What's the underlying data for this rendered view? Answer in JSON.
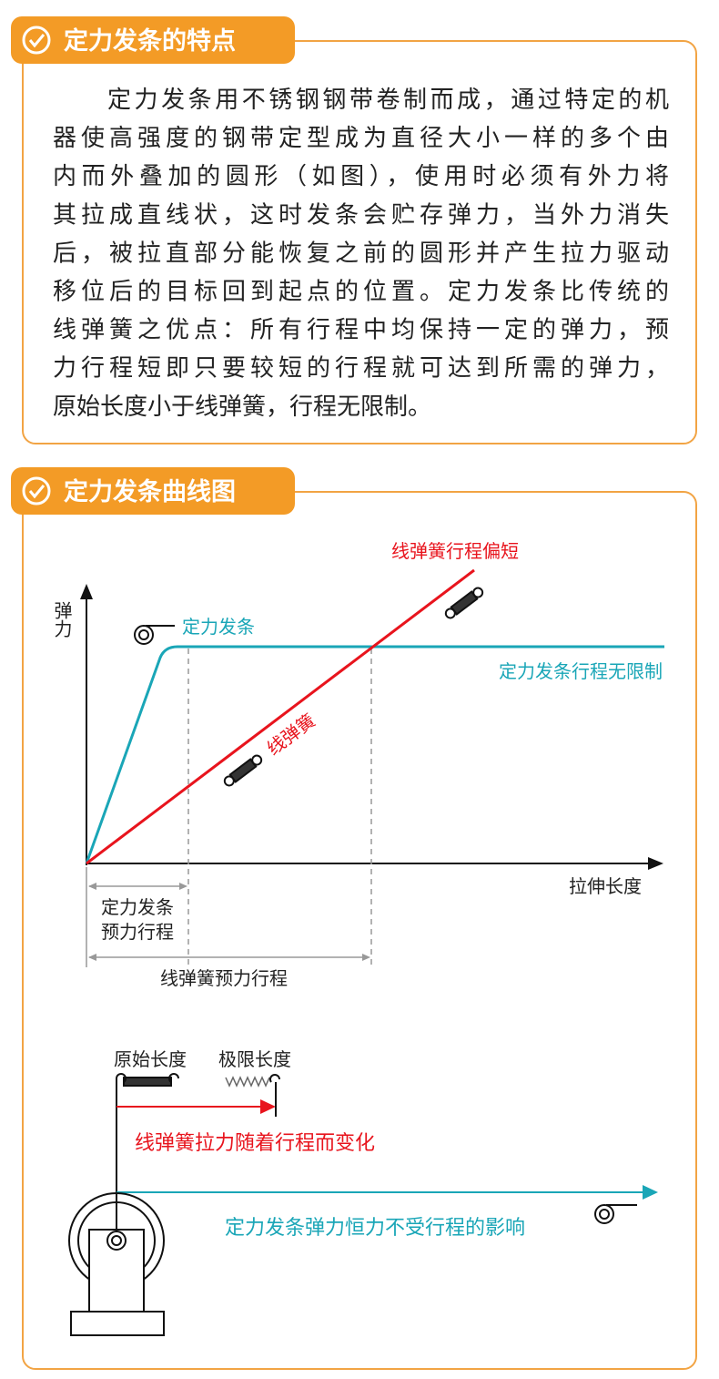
{
  "sections": [
    {
      "title": "定力发条的特点",
      "paragraph_lines": [
        "定力发条用不锈钢钢带卷制而成，通过特定的机",
        "器使高强度的钢带定型成为直径大小一样的多个由",
        "内而外叠加的圆形（如图），使用时必须有外力将",
        "其拉成直线状，这时发条会贮存弹力，当外力消失",
        "后，被拉直部分能恢复之前的圆形并产生拉力驱动",
        "移位后的目标回到起点的位置。定力发条比传统的",
        "线弹簧之优点：所有行程中均保持一定的弹力，预",
        "力行程短即只要较短的行程就可达到所需的弹力，",
        "原始长度小于线弹簧，行程无限制。"
      ]
    },
    {
      "title": "定力发条曲线图"
    }
  ],
  "diagram": {
    "y_axis_label": "弹力",
    "x_axis_label": "拉伸长度",
    "constant_spring_label": "定力发条",
    "constant_spring_note": "定力发条行程无限制",
    "line_spring_note": "线弹簧行程偏短",
    "line_spring_label": "线弹簧",
    "constant_preload": [
      "定力发条",
      "预力行程"
    ],
    "line_preload": "线弹簧预力行程",
    "original_length": "原始长度",
    "limit_length": "极限长度",
    "line_spring_change": "线弹簧拉力随着行程而变化",
    "constant_force": "定力发条弹力恒力不受行程的影响"
  }
}
